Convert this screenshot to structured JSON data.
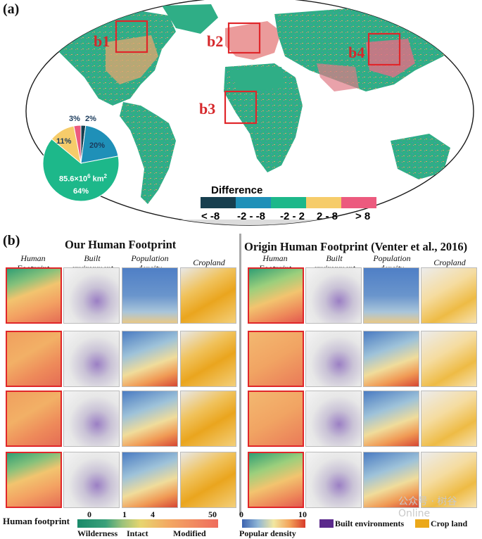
{
  "panel_a": {
    "label": "(a)",
    "regions": [
      "b1",
      "b2",
      "b3",
      "b4"
    ],
    "legend": {
      "title": "Difference",
      "categories": [
        "< -8",
        "-2 - -8",
        "-2 - 2",
        "2 - 8",
        "> 8"
      ],
      "colors": [
        "#173f4f",
        "#1f90b8",
        "#1db88a",
        "#f6cc6a",
        "#ec5a7e"
      ]
    },
    "pie": {
      "center_line1": "85.6×10",
      "center_sup": "6",
      "center_line1_unit": " km",
      "center_unit_sup": "2",
      "center_line2": "64%"
    }
  },
  "chart_data": {
    "type": "pie",
    "title": "Difference",
    "categories": [
      "< -8",
      "-2 - -8",
      "-2 - 2",
      "2 - 8",
      "> 8"
    ],
    "values": [
      2,
      20,
      64,
      11,
      3
    ],
    "colors": [
      "#173f4f",
      "#1f90b8",
      "#1db88a",
      "#f6cc6a",
      "#ec5a7e"
    ],
    "labels": [
      "2%",
      "20%",
      "64%",
      "11%",
      "3%"
    ]
  },
  "panel_b": {
    "label": "(b)",
    "left_title": "Our Human Footprint",
    "right_title": "Origin Human Footprint (Venter et al., 2016)",
    "columns": [
      "Human Footprint",
      "Built environment",
      "Population density",
      "Cropland"
    ]
  },
  "bottom_legend": {
    "hf_title": "Human footprint",
    "hf_ticks": [
      "0",
      "1",
      "4",
      "50"
    ],
    "hf_classes": [
      "Wilderness",
      "Intact",
      "Modified"
    ],
    "pd_ticks": [
      "0",
      "10"
    ],
    "pd_title": "Popular density",
    "built_label": "Built environments",
    "crop_label": "Crop land",
    "colors": {
      "built": "#5b2a8c",
      "crop": "#eba81a"
    }
  },
  "watermark": "公众号 · 树谷Online"
}
